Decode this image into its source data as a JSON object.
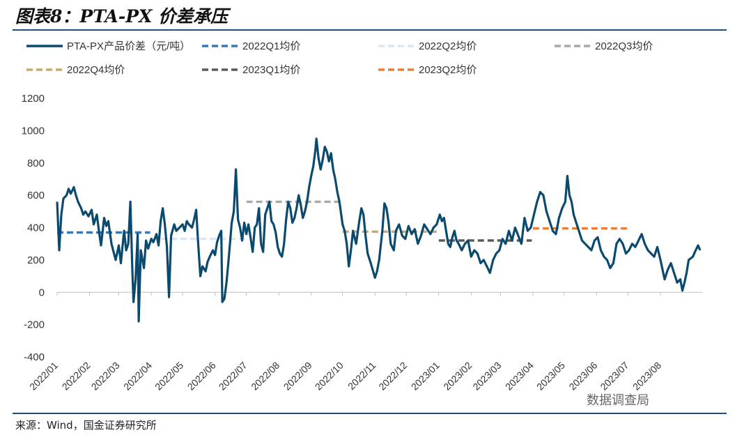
{
  "header": {
    "title": "图表8：PTA-PX 价差承压"
  },
  "source": "来源：Wind，国金证券研究所",
  "watermark": "数据调查局",
  "chart_data": {
    "type": "line",
    "title": "",
    "xlabel": "",
    "ylabel": "",
    "ylim": [
      -400,
      1200
    ],
    "yticks": [
      -400,
      -200,
      0,
      200,
      400,
      600,
      800,
      1000,
      1200
    ],
    "xticks": [
      "2022/01",
      "2022/02",
      "2022/03",
      "2022/04",
      "2022/05",
      "2022/06",
      "2022/07",
      "2022/08",
      "2022/09",
      "2022/10",
      "2022/11",
      "2022/12",
      "2023/01",
      "2023/02",
      "2023/03",
      "2023/04",
      "2023/05",
      "2023/06",
      "2023/07",
      "2023/08"
    ],
    "grid": false,
    "legend": "top",
    "series": [
      {
        "name": "PTA-PX产品价差（元/吨）",
        "style": "solid",
        "color": "#0b4a6f",
        "points": [
          [
            "2022-01-01",
            560
          ],
          [
            "2022-01-03",
            260
          ],
          [
            "2022-01-05",
            480
          ],
          [
            "2022-01-07",
            580
          ],
          [
            "2022-01-10",
            600
          ],
          [
            "2022-01-12",
            640
          ],
          [
            "2022-01-14",
            610
          ],
          [
            "2022-01-17",
            650
          ],
          [
            "2022-01-19",
            600
          ],
          [
            "2022-01-21",
            560
          ],
          [
            "2022-01-24",
            520
          ],
          [
            "2022-01-26",
            480
          ],
          [
            "2022-01-28",
            500
          ],
          [
            "2022-01-31",
            470
          ],
          [
            "2022-02-03",
            510
          ],
          [
            "2022-02-05",
            420
          ],
          [
            "2022-02-08",
            480
          ],
          [
            "2022-02-10",
            380
          ],
          [
            "2022-02-12",
            290
          ],
          [
            "2022-02-15",
            460
          ],
          [
            "2022-02-17",
            410
          ],
          [
            "2022-02-19",
            440
          ],
          [
            "2022-02-22",
            300
          ],
          [
            "2022-02-24",
            250
          ],
          [
            "2022-02-26",
            200
          ],
          [
            "2022-03-01",
            290
          ],
          [
            "2022-03-03",
            180
          ],
          [
            "2022-03-06",
            380
          ],
          [
            "2022-03-08",
            260
          ],
          [
            "2022-03-10",
            300
          ],
          [
            "2022-03-12",
            560
          ],
          [
            "2022-03-14",
            120
          ],
          [
            "2022-03-15",
            -60
          ],
          [
            "2022-03-17",
            80
          ],
          [
            "2022-03-19",
            360
          ],
          [
            "2022-03-20",
            -180
          ],
          [
            "2022-03-22",
            260
          ],
          [
            "2022-03-25",
            150
          ],
          [
            "2022-03-27",
            320
          ],
          [
            "2022-03-29",
            270
          ],
          [
            "2022-04-01",
            330
          ],
          [
            "2022-04-03",
            310
          ],
          [
            "2022-04-06",
            360
          ],
          [
            "2022-04-08",
            290
          ],
          [
            "2022-04-10",
            440
          ],
          [
            "2022-04-12",
            520
          ],
          [
            "2022-04-14",
            420
          ],
          [
            "2022-04-16",
            280
          ],
          [
            "2022-04-18",
            -30
          ],
          [
            "2022-04-20",
            350
          ],
          [
            "2022-04-23",
            420
          ],
          [
            "2022-04-25",
            380
          ],
          [
            "2022-04-28",
            400
          ],
          [
            "2022-05-01",
            420
          ],
          [
            "2022-05-03",
            380
          ],
          [
            "2022-05-05",
            440
          ],
          [
            "2022-05-07",
            420
          ],
          [
            "2022-05-10",
            400
          ],
          [
            "2022-05-12",
            450
          ],
          [
            "2022-05-14",
            510
          ],
          [
            "2022-05-16",
            290
          ],
          [
            "2022-05-18",
            100
          ],
          [
            "2022-05-20",
            160
          ],
          [
            "2022-05-23",
            130
          ],
          [
            "2022-05-25",
            190
          ],
          [
            "2022-05-27",
            220
          ],
          [
            "2022-05-30",
            260
          ],
          [
            "2022-06-01",
            230
          ],
          [
            "2022-06-03",
            310
          ],
          [
            "2022-06-05",
            350
          ],
          [
            "2022-06-07",
            380
          ],
          [
            "2022-06-08",
            -60
          ],
          [
            "2022-06-10",
            -40
          ],
          [
            "2022-06-12",
            60
          ],
          [
            "2022-06-14",
            200
          ],
          [
            "2022-06-17",
            430
          ],
          [
            "2022-06-19",
            500
          ],
          [
            "2022-06-21",
            760
          ],
          [
            "2022-06-23",
            450
          ],
          [
            "2022-06-25",
            400
          ],
          [
            "2022-06-27",
            320
          ],
          [
            "2022-06-29",
            430
          ],
          [
            "2022-07-01",
            360
          ],
          [
            "2022-07-03",
            420
          ],
          [
            "2022-07-05",
            340
          ],
          [
            "2022-07-07",
            250
          ],
          [
            "2022-07-09",
            400
          ],
          [
            "2022-07-11",
            420
          ],
          [
            "2022-07-13",
            520
          ],
          [
            "2022-07-15",
            300
          ],
          [
            "2022-07-17",
            250
          ],
          [
            "2022-07-19",
            480
          ],
          [
            "2022-07-21",
            520
          ],
          [
            "2022-07-23",
            560
          ],
          [
            "2022-07-25",
            440
          ],
          [
            "2022-07-27",
            420
          ],
          [
            "2022-07-29",
            370
          ],
          [
            "2022-07-31",
            280
          ],
          [
            "2022-08-02",
            240
          ],
          [
            "2022-08-04",
            220
          ],
          [
            "2022-08-06",
            300
          ],
          [
            "2022-08-08",
            450
          ],
          [
            "2022-08-10",
            560
          ],
          [
            "2022-08-12",
            520
          ],
          [
            "2022-08-14",
            430
          ],
          [
            "2022-08-16",
            460
          ],
          [
            "2022-08-18",
            520
          ],
          [
            "2022-08-20",
            600
          ],
          [
            "2022-08-22",
            540
          ],
          [
            "2022-08-24",
            460
          ],
          [
            "2022-08-26",
            500
          ],
          [
            "2022-08-28",
            560
          ],
          [
            "2022-08-30",
            650
          ],
          [
            "2022-09-01",
            720
          ],
          [
            "2022-09-03",
            780
          ],
          [
            "2022-09-05",
            880
          ],
          [
            "2022-09-06",
            950
          ],
          [
            "2022-09-08",
            830
          ],
          [
            "2022-09-10",
            760
          ],
          [
            "2022-09-12",
            820
          ],
          [
            "2022-09-14",
            900
          ],
          [
            "2022-09-16",
            870
          ],
          [
            "2022-09-18",
            810
          ],
          [
            "2022-09-20",
            860
          ],
          [
            "2022-09-22",
            760
          ],
          [
            "2022-09-24",
            700
          ],
          [
            "2022-09-26",
            620
          ],
          [
            "2022-09-28",
            560
          ],
          [
            "2022-10-01",
            420
          ],
          [
            "2022-10-03",
            380
          ],
          [
            "2022-10-05",
            300
          ],
          [
            "2022-10-07",
            160
          ],
          [
            "2022-10-09",
            260
          ],
          [
            "2022-10-11",
            380
          ],
          [
            "2022-10-14",
            300
          ],
          [
            "2022-10-17",
            440
          ],
          [
            "2022-10-19",
            520
          ],
          [
            "2022-10-21",
            480
          ],
          [
            "2022-10-23",
            350
          ],
          [
            "2022-10-25",
            240
          ],
          [
            "2022-10-28",
            180
          ],
          [
            "2022-11-01",
            90
          ],
          [
            "2022-11-03",
            130
          ],
          [
            "2022-11-05",
            200
          ],
          [
            "2022-11-08",
            380
          ],
          [
            "2022-11-10",
            550
          ],
          [
            "2022-11-12",
            520
          ],
          [
            "2022-11-14",
            430
          ],
          [
            "2022-11-16",
            300
          ],
          [
            "2022-11-19",
            260
          ],
          [
            "2022-11-21",
            380
          ],
          [
            "2022-11-24",
            420
          ],
          [
            "2022-11-27",
            350
          ],
          [
            "2022-11-30",
            330
          ],
          [
            "2022-12-03",
            410
          ],
          [
            "2022-12-06",
            360
          ],
          [
            "2022-12-09",
            390
          ],
          [
            "2022-12-12",
            300
          ],
          [
            "2022-12-15",
            350
          ],
          [
            "2022-12-18",
            420
          ],
          [
            "2022-12-21",
            390
          ],
          [
            "2022-12-24",
            360
          ],
          [
            "2022-12-27",
            400
          ],
          [
            "2022-12-30",
            420
          ],
          [
            "2023-01-02",
            480
          ],
          [
            "2023-01-04",
            440
          ],
          [
            "2023-01-06",
            460
          ],
          [
            "2023-01-08",
            380
          ],
          [
            "2023-01-10",
            300
          ],
          [
            "2023-01-12",
            280
          ],
          [
            "2023-01-14",
            340
          ],
          [
            "2023-01-16",
            380
          ],
          [
            "2023-01-18",
            320
          ],
          [
            "2023-01-20",
            300
          ],
          [
            "2023-01-23",
            260
          ],
          [
            "2023-01-26",
            300
          ],
          [
            "2023-01-29",
            320
          ],
          [
            "2023-02-01",
            220
          ],
          [
            "2023-02-04",
            260
          ],
          [
            "2023-02-07",
            240
          ],
          [
            "2023-02-10",
            180
          ],
          [
            "2023-02-13",
            200
          ],
          [
            "2023-02-16",
            160
          ],
          [
            "2023-02-19",
            120
          ],
          [
            "2023-02-22",
            200
          ],
          [
            "2023-02-25",
            240
          ],
          [
            "2023-02-28",
            260
          ],
          [
            "2023-03-03",
            330
          ],
          [
            "2023-03-06",
            300
          ],
          [
            "2023-03-09",
            380
          ],
          [
            "2023-03-12",
            320
          ],
          [
            "2023-03-15",
            400
          ],
          [
            "2023-03-18",
            350
          ],
          [
            "2023-03-21",
            300
          ],
          [
            "2023-03-24",
            460
          ],
          [
            "2023-03-27",
            380
          ],
          [
            "2023-03-30",
            400
          ],
          [
            "2023-04-02",
            480
          ],
          [
            "2023-04-05",
            560
          ],
          [
            "2023-04-08",
            620
          ],
          [
            "2023-04-11",
            600
          ],
          [
            "2023-04-14",
            500
          ],
          [
            "2023-04-17",
            440
          ],
          [
            "2023-04-20",
            380
          ],
          [
            "2023-04-23",
            360
          ],
          [
            "2023-04-26",
            460
          ],
          [
            "2023-04-29",
            520
          ],
          [
            "2023-05-02",
            560
          ],
          [
            "2023-05-04",
            720
          ],
          [
            "2023-05-06",
            600
          ],
          [
            "2023-05-08",
            560
          ],
          [
            "2023-05-10",
            480
          ],
          [
            "2023-05-12",
            440
          ],
          [
            "2023-05-15",
            380
          ],
          [
            "2023-05-18",
            320
          ],
          [
            "2023-05-21",
            300
          ],
          [
            "2023-05-24",
            280
          ],
          [
            "2023-05-27",
            260
          ],
          [
            "2023-05-30",
            320
          ],
          [
            "2023-06-02",
            340
          ],
          [
            "2023-06-05",
            260
          ],
          [
            "2023-06-08",
            220
          ],
          [
            "2023-06-11",
            200
          ],
          [
            "2023-06-14",
            150
          ],
          [
            "2023-06-17",
            180
          ],
          [
            "2023-06-20",
            300
          ],
          [
            "2023-06-23",
            330
          ],
          [
            "2023-06-26",
            300
          ],
          [
            "2023-06-29",
            240
          ],
          [
            "2023-07-02",
            260
          ],
          [
            "2023-07-05",
            300
          ],
          [
            "2023-07-08",
            280
          ],
          [
            "2023-07-11",
            320
          ],
          [
            "2023-07-14",
            360
          ],
          [
            "2023-07-17",
            300
          ],
          [
            "2023-07-20",
            260
          ],
          [
            "2023-07-23",
            240
          ],
          [
            "2023-07-26",
            220
          ],
          [
            "2023-07-29",
            280
          ],
          [
            "2023-08-01",
            200
          ],
          [
            "2023-08-03",
            140
          ],
          [
            "2023-08-05",
            80
          ],
          [
            "2023-08-08",
            140
          ],
          [
            "2023-08-11",
            180
          ],
          [
            "2023-08-14",
            120
          ],
          [
            "2023-08-17",
            60
          ],
          [
            "2023-08-20",
            80
          ],
          [
            "2023-08-22",
            10
          ],
          [
            "2023-08-24",
            60
          ],
          [
            "2023-08-26",
            120
          ],
          [
            "2023-08-28",
            200
          ],
          [
            "2023-09-01",
            220
          ],
          [
            "2023-09-03",
            250
          ],
          [
            "2023-09-06",
            290
          ],
          [
            "2023-09-08",
            260
          ]
        ]
      },
      {
        "name": "2022Q1均价",
        "style": "dashed",
        "color": "#3a78b4",
        "points": [
          [
            "2022-01-01",
            370
          ],
          [
            "2022-03-31",
            370
          ]
        ]
      },
      {
        "name": "2022Q2均价",
        "style": "dashed",
        "color": "#d6e6f4",
        "points": [
          [
            "2022-04-01",
            330
          ],
          [
            "2022-06-30",
            330
          ]
        ]
      },
      {
        "name": "2022Q3均价",
        "style": "dashed",
        "color": "#a9a9a9",
        "points": [
          [
            "2022-07-01",
            560
          ],
          [
            "2022-09-30",
            560
          ]
        ]
      },
      {
        "name": "2022Q4均价",
        "style": "dashed",
        "color": "#c8a96e",
        "points": [
          [
            "2022-10-01",
            375
          ],
          [
            "2022-12-31",
            375
          ]
        ]
      },
      {
        "name": "2023Q1均价",
        "style": "dashed",
        "color": "#5a5a5a",
        "points": [
          [
            "2023-01-01",
            320
          ],
          [
            "2023-03-31",
            320
          ]
        ]
      },
      {
        "name": "2023Q2均价",
        "style": "dashed",
        "color": "#ef7d31",
        "points": [
          [
            "2023-04-01",
            395
          ],
          [
            "2023-06-30",
            395
          ]
        ]
      }
    ]
  }
}
